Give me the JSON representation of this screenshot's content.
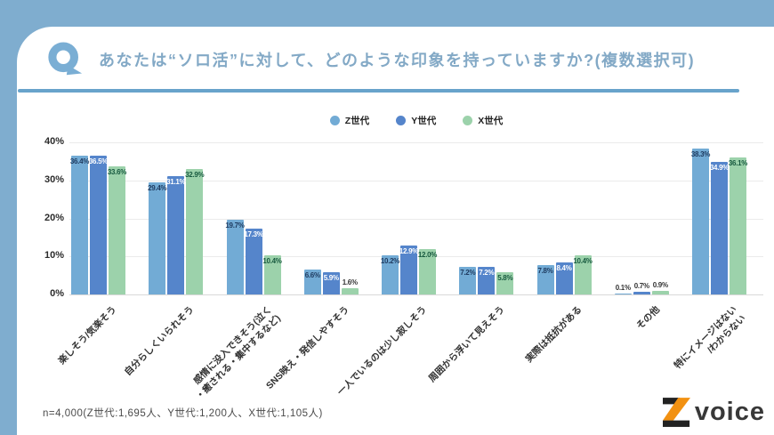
{
  "frame": {
    "bg_color": "#7fadcf",
    "divider_color": "#68a3cb"
  },
  "header": {
    "q_icon": "speech-bubble-q-icon",
    "q_color": "#7aaed4",
    "title": "あなたは“ソロ活”に対して、どのような印象を持っていますか?(複数選択可)",
    "title_color": "#83a9c6"
  },
  "chart_data": {
    "type": "bar",
    "title": "",
    "xlabel": "",
    "ylabel": "",
    "ylim": [
      0,
      40
    ],
    "yticks": [
      "0%",
      "10%",
      "20%",
      "30%",
      "40%"
    ],
    "grid": true,
    "legend_position": "top-center",
    "categories": [
      "楽しそう/気楽そう",
      "自分らしくいられそう",
      "感情に没入できそう(泣く\n・癒される・集中するなど)",
      "SNS映え・発信しやすそう",
      "一人でいるのは少し寂しそう",
      "周囲から浮いて見えそう",
      "実際は抵抗がある",
      "その他",
      "特にイメージはない\n/わからない"
    ],
    "series": [
      {
        "name": "Z世代",
        "color": "#72abd5",
        "label_color": "#1e3a5f",
        "values": [
          36.4,
          29.4,
          19.7,
          6.6,
          10.2,
          7.2,
          7.8,
          0.1,
          38.3
        ]
      },
      {
        "name": "Y世代",
        "color": "#5585cb",
        "label_color": "#ffffff",
        "values": [
          36.5,
          31.1,
          17.3,
          5.9,
          12.9,
          7.2,
          8.4,
          0.7,
          34.9
        ]
      },
      {
        "name": "X世代",
        "color": "#9cd2ab",
        "label_color": "#17593f",
        "values": [
          33.6,
          32.9,
          10.4,
          1.6,
          12.0,
          5.8,
          10.4,
          0.9,
          36.1
        ]
      }
    ],
    "outside_label_color": "#333333",
    "gridline_color": "#ebebeb",
    "baseline_color": "#d8d8d8"
  },
  "footer": {
    "note": "n=4,000(Z世代:1,695人、Y世代:1,200人、X世代:1,105人)",
    "logo_z": "Z",
    "logo_text": "voice",
    "logo_orange": "#f29111",
    "logo_black": "#222222"
  }
}
